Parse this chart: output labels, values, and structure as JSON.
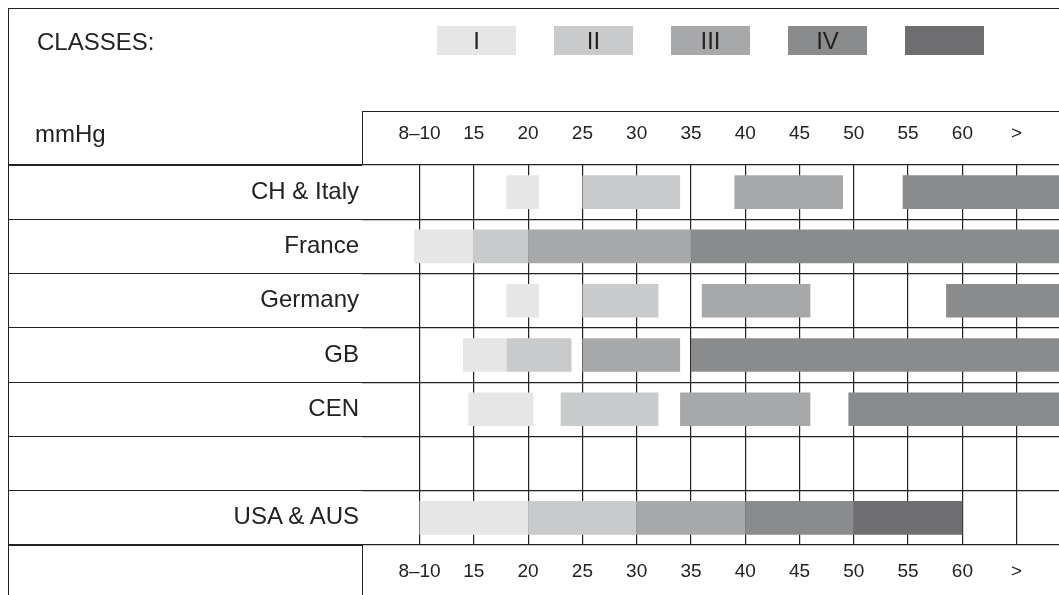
{
  "chart_data": {
    "type": "bar",
    "orientation": "horizontal",
    "legend_title": "CLASSES:",
    "annotations": [
      "mmHg"
    ],
    "categories": [
      "CH & Italy",
      "France",
      "Germany",
      "GB",
      "CEN",
      null,
      "USA & AUS"
    ],
    "series": [
      {
        "name": "I",
        "color": "#e6e6e6",
        "base": [
          18,
          9.5,
          18,
          14,
          14.5,
          null,
          10
        ],
        "values": [
          3,
          5.5,
          3,
          4,
          6,
          null,
          10
        ]
      },
      {
        "name": "II",
        "color": "#c8cacc",
        "base": [
          25,
          15,
          25,
          18,
          23,
          null,
          20
        ],
        "values": [
          9,
          5,
          7,
          6,
          9,
          null,
          10
        ]
      },
      {
        "name": "III",
        "color": "#a6a8aa",
        "base": [
          39,
          20,
          36,
          25,
          34,
          null,
          30
        ],
        "values": [
          10,
          15,
          10,
          9,
          12,
          null,
          10
        ]
      },
      {
        "name": "IV",
        "color": "#898b8d",
        "base": [
          54.5,
          35,
          58.5,
          35,
          49.5,
          null,
          40
        ],
        "values": [
          14.4,
          33.9,
          10.4,
          33.9,
          19.4,
          null,
          10
        ]
      },
      {
        "color": "#6e6d70",
        "base": [
          null,
          null,
          null,
          null,
          null,
          null,
          50
        ],
        "values": [
          null,
          null,
          null,
          null,
          null,
          null,
          10
        ]
      }
    ],
    "xlim": [
      4.7,
      68.9
    ],
    "xticks": [
      {
        "value": 10,
        "label": "8–10"
      },
      15,
      20,
      25,
      30,
      35,
      40,
      45,
      50,
      55,
      60,
      {
        "value": 65,
        "label": ">"
      }
    ],
    "x2lim": [
      4.7,
      68.9
    ],
    "x2ticks": [
      {
        "value": 10,
        "label": "8–10"
      },
      15,
      20,
      25,
      30,
      35,
      40,
      45,
      50,
      55,
      60,
      {
        "value": 65,
        "label": ">"
      }
    ],
    "grid": true,
    "legend": "top"
  }
}
